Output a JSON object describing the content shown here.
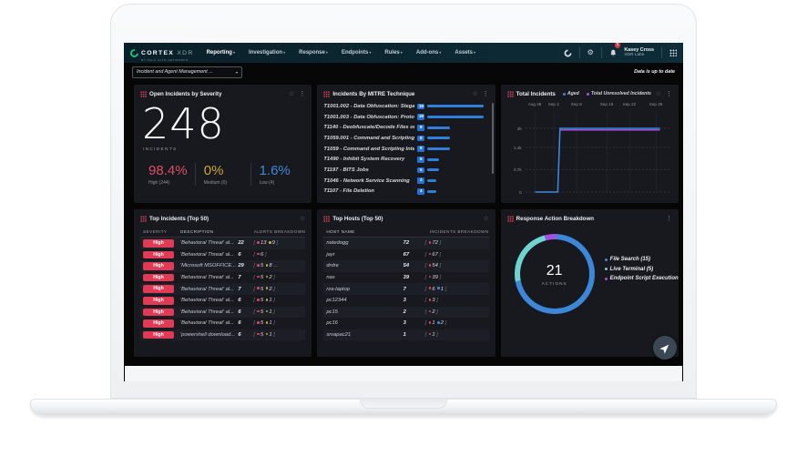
{
  "navbar": {
    "brand": "CORTEX",
    "brand_suffix": "XDR",
    "tagline": "BY PALO ALTO NETWORKS",
    "menus": [
      {
        "label": "Reporting"
      },
      {
        "label": "Investigation"
      },
      {
        "label": "Response"
      },
      {
        "label": "Endpoints"
      },
      {
        "label": "Rules"
      },
      {
        "label": "Add-ons"
      },
      {
        "label": "Assets"
      }
    ],
    "notification_count": "1",
    "user_name": "Kasey Cross",
    "user_org": "XDR Labs"
  },
  "subheader": {
    "dashboard_select": "Incident and Agent Management ...",
    "status": "Data is up to date"
  },
  "open_incidents": {
    "title": "Open Incidents by Severity",
    "count": "248",
    "count_label": "INCIDENTS",
    "stats": [
      {
        "pct": "98.4%",
        "label": "High (244)",
        "color": "#d94f63"
      },
      {
        "pct": "0%",
        "label": "Medium (0)",
        "color": "#cfa43a"
      },
      {
        "pct": "1.6%",
        "label": "Low (4)",
        "color": "#3f8ad6"
      }
    ]
  },
  "mitre": {
    "title": "Incidents By MITRE Technique",
    "rows": [
      {
        "label": "T1001.002 - Data Obfuscation: Stegano...",
        "count": "19",
        "bar_pct": 100
      },
      {
        "label": "T1001.003 - Data Obfuscation: Protocol ...",
        "count": "19",
        "bar_pct": 100
      },
      {
        "label": "T1140 - Deobfuscate/Decode Files or Inf...",
        "count": "8",
        "bar_pct": 40
      },
      {
        "label": "T1059.001 - Command and Scripting Int...",
        "count": "8",
        "bar_pct": 40
      },
      {
        "label": "T1059 - Command and Scripting Interpr...",
        "count": "8",
        "bar_pct": 40
      },
      {
        "label": "T1490 - Inhibit System Recovery",
        "count": "5",
        "bar_pct": 21
      },
      {
        "label": "T1197 - BITS Jobs",
        "count": "5",
        "bar_pct": 21
      },
      {
        "label": "T1046 - Network Service Scanning",
        "count": "4",
        "bar_pct": 15
      },
      {
        "label": "T1107 - File Deletion",
        "count": "4",
        "bar_pct": 15
      }
    ]
  },
  "total_incidents": {
    "title": "Total Incidents",
    "legend": [
      {
        "label": "Aged",
        "color": "#3d87d9"
      },
      {
        "label": "Total Unresolved Incidents",
        "color": "#a64ee0"
      }
    ]
  },
  "top_incidents": {
    "title": "Top Incidents (Top 50)",
    "columns": [
      "SEVERITY",
      "DESCRIPTION",
      "ALERTS BREAKDOWN"
    ],
    "rows": [
      {
        "severity": "High",
        "description": "'Behavioral Threat' al...",
        "count": "22",
        "dots": [
          {
            "value": "13",
            "color": "#e0435f"
          },
          {
            "value": "9",
            "color": "#cfa43a"
          }
        ],
        "more": ""
      },
      {
        "severity": "High",
        "description": "'Behavioral Threat' al...",
        "count": "6",
        "dots": [
          {
            "value": "6",
            "color": "#e0435f"
          }
        ],
        "more": ""
      },
      {
        "severity": "High",
        "description": "'Microsoft MSOFFICE...",
        "count": "29",
        "dots": [
          {
            "value": "5",
            "color": "#e0435f"
          },
          {
            "value": "8",
            "color": "#cfa43a"
          }
        ],
        "more": "..."
      },
      {
        "severity": "High",
        "description": "'Behavioral Threat' al...",
        "count": "7",
        "dots": [
          {
            "value": "5",
            "color": "#e0435f"
          },
          {
            "value": "2",
            "color": "#cfa43a"
          }
        ],
        "more": ""
      },
      {
        "severity": "High",
        "description": "'Behavioral Threat' al...",
        "count": "7",
        "dots": [
          {
            "value": "5",
            "color": "#e0435f"
          },
          {
            "value": "2",
            "color": "#cfa43a"
          }
        ],
        "more": ""
      },
      {
        "severity": "High",
        "description": "'Behavioral Threat' al...",
        "count": "6",
        "dots": [
          {
            "value": "5",
            "color": "#e0435f"
          },
          {
            "value": "1",
            "color": "#cfa43a"
          }
        ],
        "more": ""
      },
      {
        "severity": "High",
        "description": "'Behavioral Threat' al...",
        "count": "6",
        "dots": [
          {
            "value": "5",
            "color": "#e0435f"
          },
          {
            "value": "1",
            "color": "#cfa43a"
          }
        ],
        "more": ""
      },
      {
        "severity": "High",
        "description": "'Behavioral Threat' al...",
        "count": "6",
        "dots": [
          {
            "value": "5",
            "color": "#e0435f"
          },
          {
            "value": "1",
            "color": "#cfa43a"
          }
        ],
        "more": ""
      },
      {
        "severity": "High",
        "description": "'powershell download...",
        "count": "6",
        "dots": [
          {
            "value": "5",
            "color": "#e0435f"
          },
          {
            "value": "1",
            "color": "#cfa43a"
          }
        ],
        "more": ""
      }
    ]
  },
  "top_hosts": {
    "title": "Top Hosts (Top 50)",
    "columns": [
      "HOST NAME",
      "INCIDENTS BREAKDOWN"
    ],
    "rows": [
      {
        "host": "natedogg",
        "count": "72",
        "dots": [
          {
            "value": "72",
            "color": "#e0435f"
          }
        ]
      },
      {
        "host": "jayr",
        "count": "67",
        "dots": [
          {
            "value": "67",
            "color": "#e0435f"
          }
        ]
      },
      {
        "host": "drdre",
        "count": "54",
        "dots": [
          {
            "value": "54",
            "color": "#e0435f"
          }
        ]
      },
      {
        "host": "nas",
        "count": "39",
        "dots": [
          {
            "value": "39",
            "color": "#e0435f"
          }
        ]
      },
      {
        "host": "rza-laptop",
        "count": "7",
        "dots": [
          {
            "value": "6",
            "color": "#e0435f"
          },
          {
            "value": "1",
            "color": "#3d87d9"
          }
        ]
      },
      {
        "host": "pc12344",
        "count": "3",
        "dots": [
          {
            "value": "3",
            "color": "#e0435f"
          }
        ]
      },
      {
        "host": "pc15",
        "count": "2",
        "dots": [
          {
            "value": "2",
            "color": "#e0435f"
          }
        ]
      },
      {
        "host": "pc16",
        "count": "3",
        "dots": [
          {
            "value": "1",
            "color": "#e0435f"
          },
          {
            "value": "2",
            "color": "#3d87d9"
          }
        ]
      },
      {
        "host": "srvapac21",
        "count": "1",
        "dots": [
          {
            "value": "1",
            "color": "#e0435f"
          }
        ]
      }
    ]
  },
  "response_actions": {
    "title": "Response Action Breakdown",
    "center_value": "21",
    "center_label": "ACTIONS",
    "legend": [
      {
        "label": "File Search (15)",
        "color": "#3d87d9"
      },
      {
        "label": "Live Terminal (5)",
        "color": "#6fd3cf"
      },
      {
        "label": "Endpoint Script Execution (1)",
        "color": "#a64ee0"
      }
    ]
  },
  "chart_data": [
    {
      "type": "line",
      "title": "Total Incidents",
      "x_range": [
        -2.5,
        36
      ],
      "x_ticks": [
        {
          "label": "Aug 28",
          "day": 0
        },
        {
          "label": "Sep 2",
          "day": 5
        },
        {
          "label": "Sep 8",
          "day": 11
        },
        {
          "label": "Sep 16",
          "day": 19
        },
        {
          "label": "Sep 22",
          "day": 25
        },
        {
          "label": "Sep 29",
          "day": 32
        }
      ],
      "ylim": [
        0,
        2400
      ],
      "y_ticks": [
        {
          "label": "0",
          "value": 0
        },
        {
          "label": "0.7k",
          "value": 700
        },
        {
          "label": "1.4k",
          "value": 1400
        },
        {
          "label": "2k",
          "value": 2000
        }
      ],
      "grid": "horizontal-dotted, vertical-solid",
      "legend_position": "top",
      "series": [
        {
          "name": "Aged",
          "color": "#3d87d9",
          "points": [
            [
              0,
              0
            ],
            [
              6,
              0
            ],
            [
              6.6,
              2000
            ],
            [
              33,
              2000
            ]
          ]
        },
        {
          "name": "Total Unresolved Incidents",
          "color": "#a64ee0",
          "points": [
            [
              6.6,
              1950
            ],
            [
              33,
              1950
            ]
          ]
        }
      ]
    },
    {
      "type": "pie",
      "title": "Response Action Breakdown",
      "labels": [
        "Endpoint Script Execution",
        "File Search",
        "Live Terminal"
      ],
      "values": [
        1,
        15,
        5
      ],
      "colors": [
        "#a64ee0",
        "#3d87d9",
        "#6fd3cf"
      ],
      "start_angle_deg": 345,
      "center_total": 21
    }
  ]
}
